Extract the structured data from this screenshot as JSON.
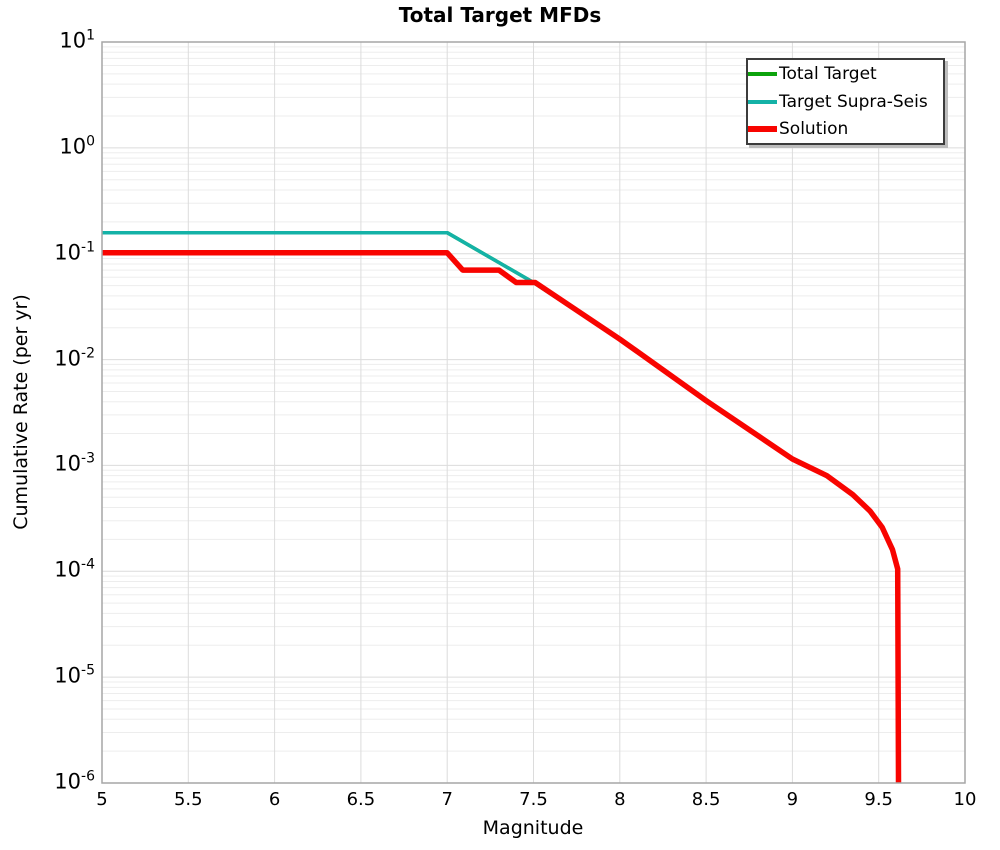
{
  "title": "Total Target MFDs",
  "axes": {
    "xlabel": "Magnitude",
    "ylabel": "Cumulative Rate (per yr)",
    "x_ticks": [
      {
        "v": 5,
        "label": "5"
      },
      {
        "v": 5.5,
        "label": "5.5"
      },
      {
        "v": 6,
        "label": "6"
      },
      {
        "v": 6.5,
        "label": "6.5"
      },
      {
        "v": 7,
        "label": "7"
      },
      {
        "v": 7.5,
        "label": "7.5"
      },
      {
        "v": 8,
        "label": "8"
      },
      {
        "v": 8.5,
        "label": "8.5"
      },
      {
        "v": 9,
        "label": "9"
      },
      {
        "v": 9.5,
        "label": "9.5"
      },
      {
        "v": 10,
        "label": "10"
      }
    ],
    "y_tick_exponents": [
      1,
      0,
      -1,
      -2,
      -3,
      -4,
      -5,
      -6
    ]
  },
  "chart_data": {
    "type": "line",
    "title": "Total Target MFDs",
    "xlabel": "Magnitude",
    "ylabel": "Cumulative Rate (per yr)",
    "xlim": [
      5,
      10
    ],
    "ylim": [
      1e-06,
      10
    ],
    "ylim_log10": [
      -6,
      1
    ],
    "y_scale": "log",
    "grid": true,
    "legend_position": "upper right",
    "series": [
      {
        "name": "Total Target",
        "color": "#0ca30c",
        "line_width": 3.5,
        "points": [
          [
            5.0,
            0.158
          ],
          [
            7.0,
            0.158
          ],
          [
            7.5,
            0.0535
          ],
          [
            8.0,
            0.0156
          ],
          [
            8.5,
            0.0041
          ],
          [
            9.0,
            0.00115
          ],
          [
            9.2,
            0.0008
          ],
          [
            9.35,
            0.00053
          ],
          [
            9.45,
            0.00037
          ],
          [
            9.52,
            0.00026
          ],
          [
            9.58,
            0.00016
          ],
          [
            9.61,
            0.000105
          ],
          [
            9.615,
            1e-06
          ]
        ]
      },
      {
        "name": "Target Supra-Seis",
        "color": "#14b2a7",
        "line_width": 3.5,
        "points": [
          [
            5.0,
            0.158
          ],
          [
            7.0,
            0.158
          ],
          [
            7.5,
            0.0535
          ],
          [
            8.0,
            0.0156
          ],
          [
            8.5,
            0.0041
          ],
          [
            9.0,
            0.00115
          ],
          [
            9.2,
            0.0008
          ],
          [
            9.35,
            0.00053
          ],
          [
            9.45,
            0.00037
          ],
          [
            9.52,
            0.00026
          ],
          [
            9.58,
            0.00016
          ],
          [
            9.61,
            0.000105
          ],
          [
            9.615,
            1e-06
          ]
        ]
      },
      {
        "name": "Solution",
        "color": "#f80400",
        "line_width": 5.5,
        "points": [
          [
            5.0,
            0.102
          ],
          [
            7.0,
            0.102
          ],
          [
            7.09,
            0.07
          ],
          [
            7.3,
            0.07
          ],
          [
            7.4,
            0.0535
          ],
          [
            7.51,
            0.0535
          ],
          [
            8.0,
            0.0156
          ],
          [
            8.5,
            0.0041
          ],
          [
            9.0,
            0.00115
          ],
          [
            9.2,
            0.0008
          ],
          [
            9.35,
            0.00053
          ],
          [
            9.45,
            0.00037
          ],
          [
            9.52,
            0.00026
          ],
          [
            9.58,
            0.00016
          ],
          [
            9.61,
            0.000105
          ],
          [
            9.615,
            1e-06
          ]
        ]
      }
    ]
  }
}
